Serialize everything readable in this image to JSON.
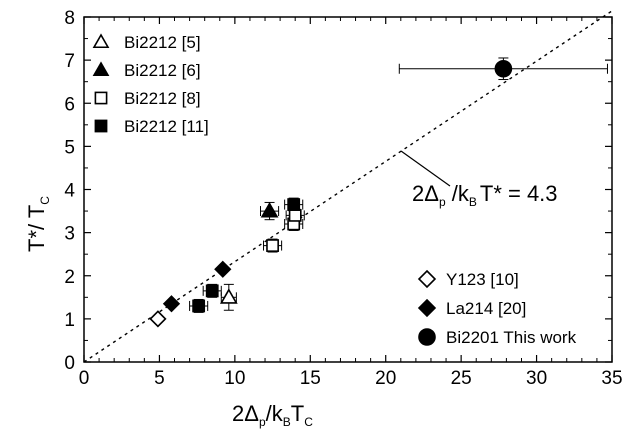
{
  "chart_data": {
    "type": "scatter",
    "xlabel": {
      "main": "2Δ",
      "sub1": "p",
      "mid": "/k",
      "sub2": "B",
      "tail": "T",
      "sub3": "C"
    },
    "ylabel": {
      "main": "T*/ T",
      "sub": "C"
    },
    "xlim": [
      0,
      35
    ],
    "ylim": [
      0,
      8
    ],
    "xticks": [
      "0",
      "5",
      "10",
      "15",
      "20",
      "25",
      "30",
      "35"
    ],
    "yticks": [
      "0",
      "1",
      "2",
      "3",
      "4",
      "5",
      "6",
      "7",
      "8"
    ],
    "grid": false,
    "legend_position_upper": "top-left",
    "legend_position_lower": "bottom-right",
    "series": [
      {
        "name": "Bi2212 [5]",
        "marker": "triangle-open",
        "points": [
          [
            9.6,
            1.5
          ]
        ],
        "xerr": [
          0.5
        ],
        "yerr": [
          0.3
        ]
      },
      {
        "name": "Bi2212 [6]",
        "marker": "triangle-filled",
        "points": [
          [
            12.3,
            3.5
          ]
        ],
        "xerr": [
          0.6
        ],
        "yerr": [
          0.2
        ]
      },
      {
        "name": "Bi2212 [8]",
        "marker": "square-open",
        "points": [
          [
            12.5,
            2.7
          ],
          [
            13.9,
            3.2
          ],
          [
            14.0,
            3.4
          ]
        ],
        "xerr": [
          0.6,
          0.6,
          0.6
        ],
        "yerr": [
          0.15,
          0.15,
          0.15
        ]
      },
      {
        "name": "Bi2212 [11]",
        "marker": "square-filled",
        "points": [
          [
            7.6,
            1.3
          ],
          [
            8.5,
            1.65
          ],
          [
            13.9,
            3.65
          ]
        ],
        "xerr": [
          0.6,
          0.6,
          0.6
        ],
        "yerr": [
          0.15,
          0.15,
          0.15
        ]
      },
      {
        "name": "Y123 [10]",
        "marker": "diamond-open",
        "points": [
          [
            4.9,
            1.0
          ]
        ],
        "xerr": [
          0
        ],
        "yerr": [
          0
        ]
      },
      {
        "name": "La214 [20]",
        "marker": "diamond-filled",
        "points": [
          [
            5.8,
            1.35
          ],
          [
            9.2,
            2.15
          ]
        ],
        "xerr": [
          0,
          0
        ],
        "yerr": [
          0,
          0
        ]
      },
      {
        "name": "Bi2201 This work",
        "marker": "circle-filled",
        "points": [
          [
            27.8,
            6.8
          ]
        ],
        "xerr": [
          6.9
        ],
        "yerr": [
          0.25
        ]
      }
    ],
    "reference_line": {
      "slope": 0.2326,
      "style": "dotted",
      "x_range": [
        0,
        35
      ]
    },
    "annotation": {
      "main": "2Δ",
      "sub1": "p",
      "mid": " /k",
      "sub2": "B",
      "tail": "T* = 4.3"
    }
  }
}
